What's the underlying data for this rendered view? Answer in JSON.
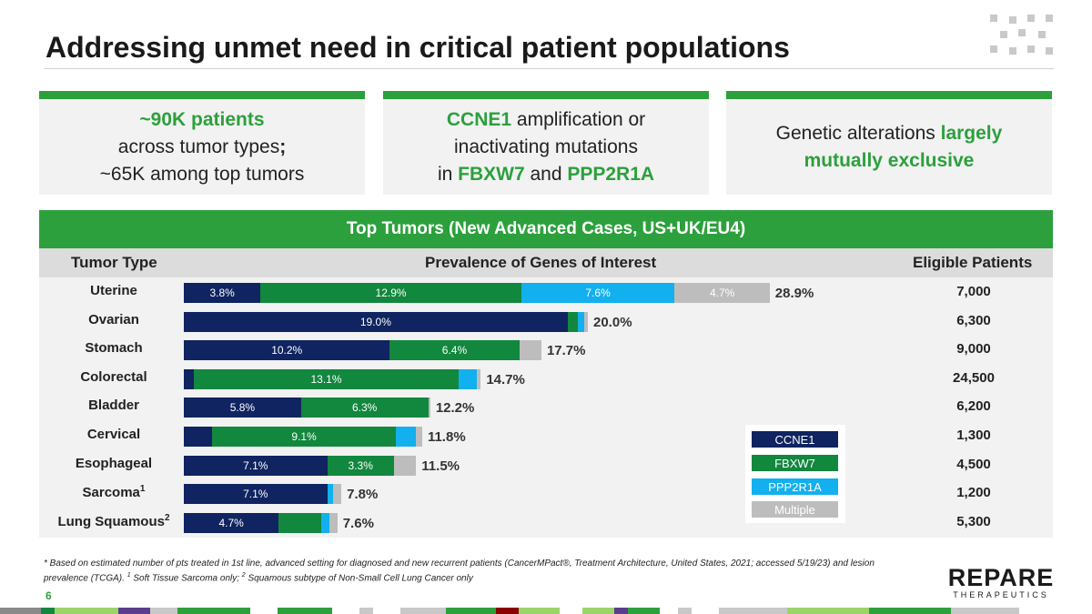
{
  "title": "Addressing unmet need in critical patient populations",
  "colors": {
    "brand_green": "#2ca03c",
    "ccne1": "#0f2460",
    "fbxw7": "#12873e",
    "ppp2r1a": "#12b0ee",
    "multiple": "#bdbdbd"
  },
  "cards": {
    "c1": {
      "l1": "~90K patients",
      "l2a": "across tumor types",
      "l2b": ";",
      "l3": "~65K among top tumors"
    },
    "c2": {
      "l1a": "CCNE1",
      "l1b": " amplification or",
      "l2": "inactivating mutations",
      "l3a": "in ",
      "l3b": "FBXW7",
      "l3c": " and ",
      "l3d": "PPP2R1A"
    },
    "c3": {
      "l1a": "Genetic alterations ",
      "l1b": "largely",
      "l2": "mutually exclusive"
    }
  },
  "table": {
    "title": "Top Tumors (New Advanced Cases, US+UK/EU4)",
    "col_tumor": "Tumor Type",
    "col_prev": "Prevalence of Genes of Interest",
    "col_elig": "Eligible Patients"
  },
  "chart_data": {
    "type": "bar",
    "orientation": "horizontal",
    "stacked": true,
    "series_names": [
      "CCNE1",
      "FBXW7",
      "PPP2R1A",
      "Multiple"
    ],
    "rows": [
      {
        "label": "Uterine",
        "sup": "",
        "values": [
          3.8,
          12.9,
          7.6,
          4.7
        ],
        "shown": [
          "3.8%",
          "12.9%",
          "7.6%",
          "4.7%"
        ],
        "total": "28.9%",
        "eligible": "7,000"
      },
      {
        "label": "Ovarian",
        "sup": "",
        "values": [
          19.0,
          0.5,
          0.3,
          0.2
        ],
        "shown": [
          "19.0%",
          "",
          "",
          ""
        ],
        "total": "20.0%",
        "eligible": "6,300"
      },
      {
        "label": "Stomach",
        "sup": "",
        "values": [
          10.2,
          6.4,
          0.0,
          1.1
        ],
        "shown": [
          "10.2%",
          "6.4%",
          "",
          ""
        ],
        "total": "17.7%",
        "eligible": "9,000"
      },
      {
        "label": "Colorectal",
        "sup": "",
        "values": [
          0.5,
          13.1,
          0.9,
          0.2
        ],
        "shown": [
          "",
          "13.1%",
          "",
          ""
        ],
        "total": "14.7%",
        "eligible": "24,500"
      },
      {
        "label": "Bladder",
        "sup": "",
        "values": [
          5.8,
          6.3,
          0.0,
          0.1
        ],
        "shown": [
          "5.8%",
          "6.3%",
          "",
          ""
        ],
        "total": "12.2%",
        "eligible": "6,200"
      },
      {
        "label": "Cervical",
        "sup": "",
        "values": [
          1.4,
          9.1,
          1.0,
          0.3
        ],
        "shown": [
          "",
          "9.1%",
          "",
          ""
        ],
        "total": "11.8%",
        "eligible": "1,300"
      },
      {
        "label": "Esophageal",
        "sup": "",
        "values": [
          7.1,
          3.3,
          0.0,
          1.1
        ],
        "shown": [
          "7.1%",
          "3.3%",
          "",
          ""
        ],
        "total": "11.5%",
        "eligible": "4,500"
      },
      {
        "label": "Sarcoma",
        "sup": "1",
        "values": [
          7.1,
          0.0,
          0.3,
          0.4
        ],
        "shown": [
          "7.1%",
          "",
          "",
          ""
        ],
        "total": "7.8%",
        "eligible": "1,200"
      },
      {
        "label": "Lung Squamous",
        "sup": "2",
        "values": [
          4.7,
          2.1,
          0.4,
          0.4
        ],
        "shown": [
          "4.7%",
          "",
          "",
          ""
        ],
        "total": "7.6%",
        "eligible": "5,300"
      }
    ],
    "xlim": [
      0,
      30
    ]
  },
  "footnote": {
    "main": "* Based on estimated number of pts treated in 1st line, advanced setting for diagnosed and new recurrent patients (CancerMPact®, Treatment Architecture, United States, 2021; accessed 5/19/23) and lesion prevalence (TCGA). ",
    "s1": "1",
    "t1": " Soft Tissue Sarcoma only; ",
    "s2": "2",
    "t2": " Squamous subtype of Non-Small Cell Lung Cancer only"
  },
  "page_number": "6",
  "brand": {
    "name": "REPARE",
    "sub": "THERAPEUTICS"
  }
}
